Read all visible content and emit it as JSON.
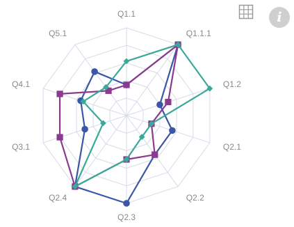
{
  "toolbar": {
    "grid_icon": "grid-table-icon",
    "info_icon": "info-icon",
    "info_glyph": "i"
  },
  "colors": {
    "grid": "#d5dbe8",
    "blue": "#3a56a5",
    "purple": "#8a3b8f",
    "teal": "#3aa89a"
  },
  "chart_data": {
    "type": "radar",
    "axes": [
      "Q1.1",
      "Q1.1.1",
      "Q1.2",
      "Q2.1",
      "Q2.2",
      "Q2.3",
      "Q2.4",
      "Q3.1",
      "Q4.1",
      "Q5.1"
    ],
    "range": [
      0,
      1
    ],
    "grid_levels": 5,
    "series": [
      {
        "color": "#3a56a5",
        "marker": "circle",
        "values": [
          0.35,
          1.0,
          0.4,
          0.55,
          0.55,
          1.0,
          1.0,
          0.5,
          0.55,
          0.62
        ]
      },
      {
        "color": "#8a3b8f",
        "marker": "square",
        "values": [
          0.35,
          1.0,
          0.5,
          0.3,
          0.55,
          0.5,
          1.0,
          0.8,
          0.8,
          0.35
        ]
      },
      {
        "color": "#3aa89a",
        "marker": "diamond",
        "values": [
          0.62,
          1.0,
          1.0,
          0.3,
          0.3,
          0.5,
          1.0,
          0.28,
          0.52,
          0.4
        ]
      }
    ]
  }
}
